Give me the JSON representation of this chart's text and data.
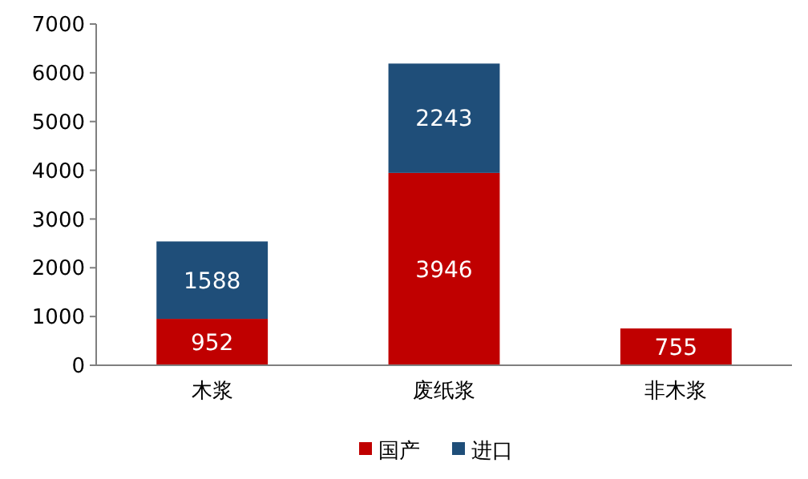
{
  "chart_data": {
    "type": "bar",
    "stacked": true,
    "categories": [
      "木浆",
      "废纸浆",
      "非木浆"
    ],
    "series": [
      {
        "name": "国产",
        "color": "#c00000",
        "values": [
          952,
          3946,
          755
        ],
        "value_labels": [
          "952",
          "3946",
          "755"
        ]
      },
      {
        "name": "进口",
        "color": "#1f4e79",
        "values": [
          1588,
          2243,
          null
        ],
        "value_labels": [
          "1588",
          "2243",
          null
        ]
      }
    ],
    "ylim": [
      0,
      7000
    ],
    "yticks": [
      0,
      1000,
      2000,
      3000,
      4000,
      5000,
      6000,
      7000
    ],
    "grid": false,
    "legend": "bottom"
  }
}
